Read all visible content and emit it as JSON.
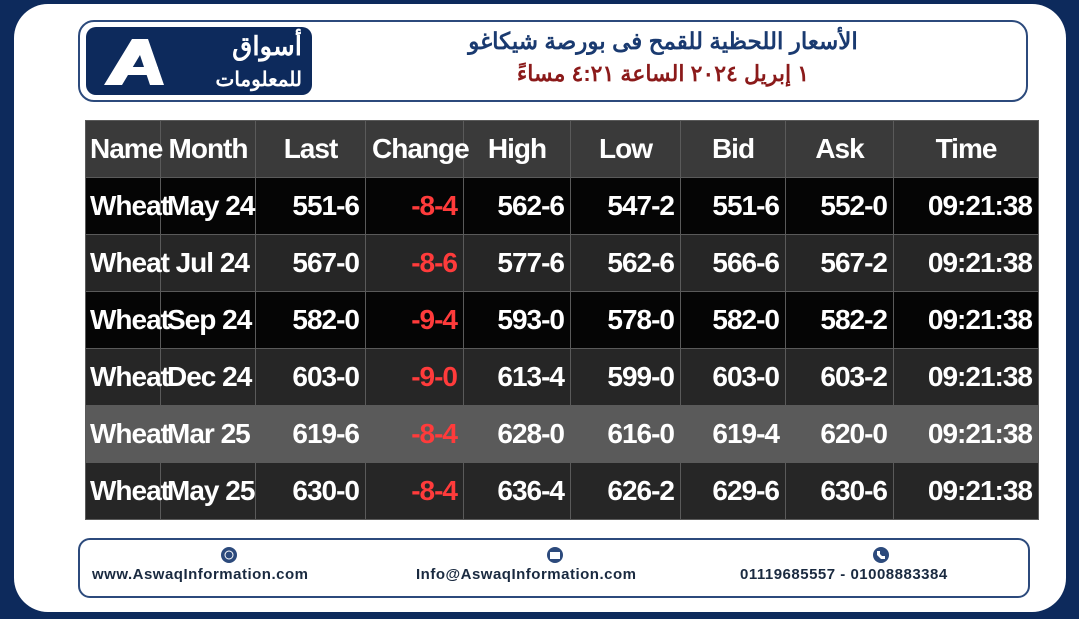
{
  "header": {
    "logo_line1": "أسواق",
    "logo_line2": "للمعلومات",
    "title_line1": "الأسعار اللحظية للقمح فى بورصة شيكاغو",
    "title_line2": "١ إبريل ٢٠٢٤ الساعة ٤:٢١ مساءً"
  },
  "table": {
    "columns": [
      "Name",
      "Month",
      "Last",
      "Change",
      "High",
      "Low",
      "Bid",
      "Ask",
      "Time"
    ],
    "rows": [
      [
        "Wheat",
        "May 24",
        "551-6",
        "-8-4",
        "562-6",
        "547-2",
        "551-6",
        "552-0",
        "09:21:38"
      ],
      [
        "Wheat",
        "Jul 24",
        "567-0",
        "-8-6",
        "577-6",
        "562-6",
        "566-6",
        "567-2",
        "09:21:38"
      ],
      [
        "Wheat",
        "Sep 24",
        "582-0",
        "-9-4",
        "593-0",
        "578-0",
        "582-0",
        "582-2",
        "09:21:38"
      ],
      [
        "Wheat",
        "Dec 24",
        "603-0",
        "-9-0",
        "613-4",
        "599-0",
        "603-0",
        "603-2",
        "09:21:38"
      ],
      [
        "Wheat",
        "Mar 25",
        "619-6",
        "-8-4",
        "628-0",
        "616-0",
        "619-4",
        "620-0",
        "09:21:38"
      ],
      [
        "Wheat",
        "May 25",
        "630-0",
        "-8-4",
        "636-4",
        "626-2",
        "629-6",
        "630-6",
        "09:21:38"
      ]
    ]
  },
  "footer": {
    "website": "www.AswaqInformation.com",
    "email": "Info@AswaqInformation.com",
    "phone": "01119685557 - 01008883384"
  }
}
